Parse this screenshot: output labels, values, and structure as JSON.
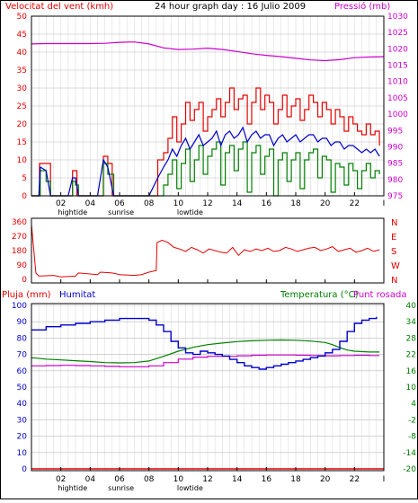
{
  "page": {
    "title": "24 hour graph day : 16 Julio 2009"
  },
  "colors": {
    "wind": "#e60000",
    "gust": "#e60000",
    "wind_avg": "#0000cc",
    "wind_min": "#008000",
    "pressure": "#cc00cc",
    "direction": "#e60000",
    "rain": "#e60000",
    "humidity": "#0000cc",
    "temperature": "#008000",
    "dewpoint": "#cc00cc",
    "axis": "#000000",
    "grid": "#bbbbbb"
  },
  "x_axis": {
    "hour_ticks": [
      "02",
      "04",
      "06",
      "08",
      "10",
      "12",
      "14",
      "16",
      "18",
      "20",
      "22",
      "I"
    ],
    "markers": [
      {
        "label": "hightide",
        "hour": 2.8
      },
      {
        "label": "sunrise",
        "hour": 6.1
      },
      {
        "label": "lowtide",
        "hour": 10.8
      }
    ]
  },
  "chart_data": [
    {
      "type": "line",
      "title": "24 hour graph day : 16 Julio 2009",
      "ylabel_left": "Velocitat del vent (kmh)",
      "ylabel_right": "Pressió (mb)",
      "ylim_left": [
        0,
        50
      ],
      "ylim_right": [
        975,
        1030
      ],
      "yticks_left": [
        "0",
        "5",
        "10",
        "15",
        "20",
        "25",
        "30",
        "35",
        "40",
        "45",
        "50"
      ],
      "yticks_right": [
        "975",
        "980",
        "985",
        "990",
        "995",
        "1000",
        "1005",
        "1010",
        "1015",
        "1020",
        "1025",
        "1030"
      ],
      "xlim": [
        0,
        24
      ],
      "grid": true,
      "series": [
        {
          "key": "gust",
          "axis": "left",
          "x": [
            0,
            0.5,
            0.55,
            1.0,
            1.3,
            2.5,
            2.8,
            3.0,
            3.1,
            4.5,
            4.9,
            5.2,
            5.5,
            8.0,
            8.6,
            9.0,
            9.3,
            9.6,
            9.9,
            10.2,
            10.5,
            10.8,
            11.1,
            11.4,
            11.7,
            12.0,
            12.3,
            12.6,
            12.9,
            13.2,
            13.5,
            13.8,
            14.1,
            14.4,
            14.7,
            15.0,
            15.3,
            15.6,
            15.9,
            16.2,
            16.5,
            16.8,
            17.1,
            17.4,
            17.7,
            18.0,
            18.3,
            18.6,
            18.9,
            19.2,
            19.5,
            19.8,
            20.1,
            20.4,
            20.7,
            21.0,
            21.3,
            21.6,
            21.9,
            22.2,
            22.5,
            22.8,
            23.1,
            23.4,
            23.7
          ],
          "values": [
            0,
            0,
            9,
            9,
            0,
            0,
            7,
            7,
            0,
            0,
            11,
            9,
            0,
            0,
            10,
            12,
            16,
            22,
            15,
            20,
            26,
            21,
            24,
            26,
            18,
            22,
            24,
            27,
            22,
            26,
            30,
            24,
            27,
            28,
            20,
            26,
            30,
            24,
            28,
            26,
            20,
            24,
            28,
            22,
            25,
            27,
            21,
            24,
            28,
            26,
            22,
            26,
            24,
            20,
            24,
            22,
            18,
            22,
            20,
            18,
            17,
            20,
            17,
            18,
            14
          ]
        },
        {
          "key": "wind_avg",
          "axis": "left",
          "x": [
            0,
            0.5,
            0.6,
            1.0,
            1.3,
            2.5,
            2.8,
            3.0,
            3.2,
            4.5,
            4.9,
            5.2,
            5.6,
            8.0,
            8.6,
            9.0,
            9.3,
            9.6,
            9.9,
            10.2,
            10.5,
            10.8,
            11.1,
            11.4,
            11.7,
            12.0,
            12.3,
            12.6,
            12.9,
            13.2,
            13.5,
            13.8,
            14.1,
            14.4,
            14.7,
            15.0,
            15.3,
            15.6,
            15.9,
            16.2,
            16.5,
            16.8,
            17.1,
            17.4,
            17.7,
            18.0,
            18.3,
            18.6,
            18.9,
            19.2,
            19.5,
            19.8,
            20.1,
            20.4,
            20.7,
            21.0,
            21.3,
            21.6,
            21.9,
            22.2,
            22.5,
            22.8,
            23.1,
            23.4,
            23.7
          ],
          "values": [
            0,
            0,
            8,
            7,
            0,
            0,
            5,
            5,
            0,
            0,
            10,
            8,
            0,
            0,
            5,
            8,
            10,
            13,
            11,
            14,
            16,
            13,
            15,
            17,
            14,
            15,
            16,
            18,
            14,
            17,
            18,
            16,
            17,
            19,
            15,
            17,
            18,
            16,
            17,
            17,
            14,
            16,
            17,
            15,
            16,
            17,
            15,
            16,
            17,
            17,
            15,
            16,
            16,
            14,
            15,
            15,
            13,
            14,
            14,
            13,
            12,
            13,
            12,
            13,
            11
          ]
        },
        {
          "key": "wind_min",
          "axis": "left",
          "x": [
            0,
            0.5,
            0.6,
            1.0,
            1.3,
            2.5,
            2.8,
            3.0,
            3.2,
            4.5,
            4.9,
            5.2,
            5.6,
            8.0,
            8.6,
            9.0,
            9.3,
            9.6,
            9.9,
            10.2,
            10.5,
            10.8,
            11.1,
            11.4,
            11.7,
            12.0,
            12.3,
            12.6,
            12.9,
            13.2,
            13.5,
            13.8,
            14.1,
            14.4,
            14.7,
            15.0,
            15.3,
            15.6,
            15.9,
            16.2,
            16.5,
            16.8,
            17.1,
            17.4,
            17.7,
            18.0,
            18.3,
            18.6,
            18.9,
            19.2,
            19.5,
            19.8,
            20.1,
            20.4,
            20.7,
            21.0,
            21.3,
            21.6,
            21.9,
            22.2,
            22.5,
            22.8,
            23.1,
            23.4,
            23.7
          ],
          "values": [
            0,
            0,
            7,
            4,
            0,
            0,
            4,
            3,
            0,
            0,
            9,
            6,
            0,
            0,
            0,
            3,
            6,
            10,
            2,
            9,
            13,
            4,
            10,
            14,
            6,
            11,
            13,
            15,
            3,
            12,
            14,
            7,
            13,
            15,
            1,
            12,
            14,
            6,
            11,
            13,
            0,
            10,
            12,
            4,
            10,
            12,
            2,
            10,
            12,
            13,
            5,
            11,
            10,
            1,
            9,
            8,
            3,
            9,
            7,
            2,
            7,
            9,
            5,
            7,
            6
          ]
        },
        {
          "key": "pressure",
          "axis": "right",
          "x": [
            0,
            1,
            2,
            3,
            4,
            5,
            6,
            7,
            8,
            9,
            10,
            11,
            12,
            13,
            14,
            15,
            16,
            17,
            18,
            19,
            20,
            21,
            22,
            23,
            24
          ],
          "values": [
            1021.5,
            1021.6,
            1021.6,
            1021.6,
            1021.6,
            1021.7,
            1022.0,
            1022.1,
            1021.5,
            1020.3,
            1019.8,
            1019.9,
            1020.2,
            1019.8,
            1019.2,
            1018.5,
            1018.0,
            1017.6,
            1017.1,
            1016.6,
            1016.4,
            1016.7,
            1017.3,
            1017.5,
            1017.6
          ]
        }
      ]
    },
    {
      "type": "line",
      "ylabel_right": "N W S E N",
      "ylim": [
        0,
        360
      ],
      "yticks_left": [
        "0",
        "90",
        "180",
        "270",
        "360"
      ],
      "compass_labels": [
        "N",
        "W",
        "S",
        "E",
        "N"
      ],
      "xlim": [
        0,
        24
      ],
      "grid": false,
      "series": [
        {
          "key": "direction",
          "x": [
            0,
            0.3,
            0.5,
            1.5,
            2.0,
            3.0,
            3.2,
            4.5,
            4.7,
            5.5,
            6.0,
            7.0,
            7.5,
            8.0,
            8.5,
            8.55,
            8.9,
            9.3,
            9.7,
            10.1,
            10.5,
            10.9,
            11.3,
            11.7,
            12.1,
            12.5,
            12.9,
            13.3,
            13.7,
            14.1,
            14.5,
            14.9,
            15.3,
            15.7,
            16.1,
            16.5,
            16.9,
            17.3,
            17.7,
            18.1,
            18.5,
            18.9,
            19.3,
            19.7,
            20.1,
            20.5,
            20.9,
            21.3,
            21.7,
            22.1,
            22.5,
            22.9,
            23.3,
            23.7
          ],
          "values": [
            345,
            40,
            20,
            25,
            15,
            20,
            40,
            30,
            45,
            40,
            30,
            25,
            30,
            45,
            55,
            230,
            245,
            230,
            200,
            190,
            175,
            200,
            185,
            165,
            190,
            180,
            170,
            165,
            200,
            150,
            185,
            175,
            190,
            180,
            195,
            175,
            180,
            200,
            190,
            175,
            185,
            195,
            200,
            180,
            190,
            205,
            175,
            185,
            195,
            170,
            180,
            195,
            175,
            185
          ]
        }
      ]
    },
    {
      "type": "line",
      "ylabel_left": "Pluja (mm)",
      "ylabel_left2": "Humitat",
      "ylabel_right": "Temperatura (°C)",
      "ylabel_right2": "Punt rosada",
      "ylim_left": [
        0,
        100
      ],
      "ylim_right": [
        -20,
        40
      ],
      "yticks_left": [
        "0",
        "10",
        "20",
        "30",
        "40",
        "50",
        "60",
        "70",
        "80",
        "90",
        "100"
      ],
      "yticks_right": [
        "-20",
        "-14",
        "-8",
        "-2",
        "4",
        "10",
        "16",
        "22",
        "28",
        "34",
        "40"
      ],
      "xlim": [
        0,
        24
      ],
      "grid": true,
      "series": [
        {
          "key": "rain",
          "axis": "left",
          "x": [
            0,
            24
          ],
          "values": [
            0,
            0
          ]
        },
        {
          "key": "humidity",
          "axis": "left",
          "x": [
            0,
            1,
            2,
            3,
            4,
            5,
            6,
            7,
            8,
            8.5,
            9,
            9.5,
            10,
            10.5,
            11,
            11.5,
            12,
            12.5,
            13,
            13.5,
            14,
            14.5,
            15,
            15.5,
            16,
            16.5,
            17,
            17.5,
            18,
            18.5,
            19,
            19.5,
            20,
            20.5,
            21,
            21.5,
            22,
            22.5,
            23,
            23.5
          ],
          "values": [
            85,
            87,
            88,
            89,
            90,
            91,
            92,
            92,
            91,
            88,
            84,
            78,
            74,
            71,
            70,
            72,
            71,
            70,
            69,
            67,
            65,
            63,
            62,
            61,
            62,
            63,
            64,
            65,
            66,
            67,
            68,
            69,
            71,
            73,
            78,
            84,
            89,
            91,
            92,
            93
          ]
        },
        {
          "key": "temperature",
          "axis": "right",
          "x": [
            0,
            1,
            2,
            3,
            4,
            5,
            6,
            7,
            8,
            9,
            10,
            11,
            12,
            13,
            14,
            15,
            16,
            17,
            18,
            19,
            20,
            20.5,
            21,
            21.5,
            22,
            23,
            23.7
          ],
          "values": [
            20.8,
            20.3,
            20.0,
            19.7,
            19.4,
            19.0,
            18.9,
            19.0,
            19.6,
            21.3,
            23.2,
            24.6,
            25.6,
            26.2,
            26.7,
            27.0,
            27.2,
            27.3,
            27.2,
            26.9,
            26.4,
            25.6,
            24.5,
            23.6,
            23.2,
            22.9,
            22.9
          ]
        },
        {
          "key": "dewpoint",
          "axis": "right",
          "x": [
            0,
            1,
            2,
            3,
            4,
            5,
            6,
            7,
            8,
            9,
            10,
            11,
            12,
            13,
            14,
            15,
            16,
            17,
            18,
            19,
            20,
            21,
            22,
            23,
            23.7
          ],
          "values": [
            17.8,
            17.9,
            18.0,
            17.9,
            17.8,
            17.6,
            17.5,
            17.5,
            17.8,
            19.0,
            20.3,
            21.0,
            21.3,
            21.3,
            21.5,
            21.7,
            21.8,
            21.8,
            21.7,
            21.6,
            21.5,
            21.6,
            21.7,
            21.6,
            21.6
          ]
        }
      ]
    }
  ],
  "panel3_titles": {
    "left1": "Pluja (mm)",
    "left2": "Humitat",
    "right1": "Temperatura (°C)",
    "right2": "Punt rosada"
  }
}
